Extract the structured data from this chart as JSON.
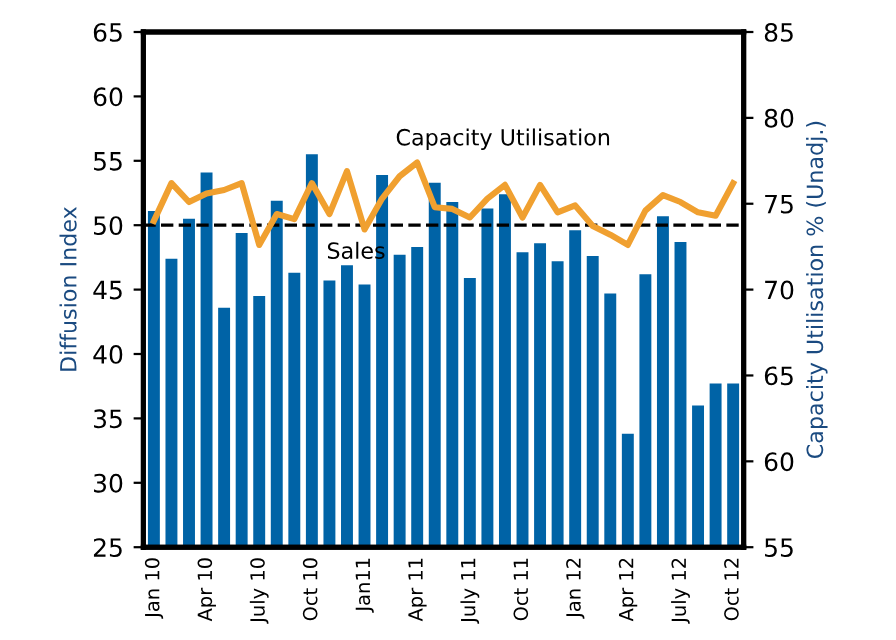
{
  "chart_data": {
    "type": "bar",
    "ylabel": "Diffusion Index",
    "y2label": "Capacity Utilisation % (Unadj.)",
    "categories": [
      "Jan 10",
      null,
      null,
      "Apr 10",
      null,
      null,
      "July 10",
      null,
      null,
      "Oct 10",
      null,
      null,
      "Jan11",
      null,
      null,
      "Apr 11",
      null,
      null,
      "July 11",
      null,
      null,
      "Oct 11",
      null,
      null,
      "Jan 12",
      null,
      null,
      "Apr 12",
      null,
      null,
      "July 12",
      null,
      null,
      "Oct 12"
    ],
    "series": [
      {
        "name": "Sales",
        "color": "#0063a6",
        "values": [
          51.1,
          47.4,
          50.5,
          54.1,
          43.6,
          49.4,
          44.5,
          51.9,
          46.3,
          55.5,
          45.7,
          46.9,
          45.4,
          53.9,
          47.7,
          48.3,
          53.3,
          51.8,
          45.9,
          51.3,
          52.4,
          47.9,
          48.6,
          47.2,
          49.6,
          47.6,
          44.7,
          33.8,
          46.2,
          50.7,
          48.7,
          36.0,
          37.7,
          37.7
        ]
      },
      {
        "name": "Capacity Utilisation",
        "type": "line",
        "axis": "y2",
        "color": "#f0a030",
        "values": [
          74.0,
          76.2,
          75.1,
          75.6,
          75.8,
          76.2,
          72.6,
          74.4,
          74.1,
          76.2,
          74.4,
          76.9,
          73.5,
          75.3,
          76.6,
          77.4,
          74.8,
          74.7,
          74.2,
          75.3,
          76.1,
          74.2,
          76.1,
          74.5,
          74.9,
          73.7,
          73.2,
          72.6,
          74.6,
          75.5,
          75.1,
          74.5,
          74.3,
          76.2
        ]
      }
    ],
    "ylim": [
      25,
      65
    ],
    "yticks": [
      25,
      30,
      35,
      40,
      45,
      50,
      55,
      60,
      65
    ],
    "y2lim": [
      55,
      85
    ],
    "y2ticks": [
      55,
      60,
      65,
      70,
      75,
      80,
      85
    ],
    "ref_lines": [
      {
        "axis": "y",
        "value": 50,
        "line_style": "dashed",
        "color": "#000000"
      }
    ],
    "grid": false,
    "legend": false,
    "marker": "none",
    "line_style": "solid"
  }
}
